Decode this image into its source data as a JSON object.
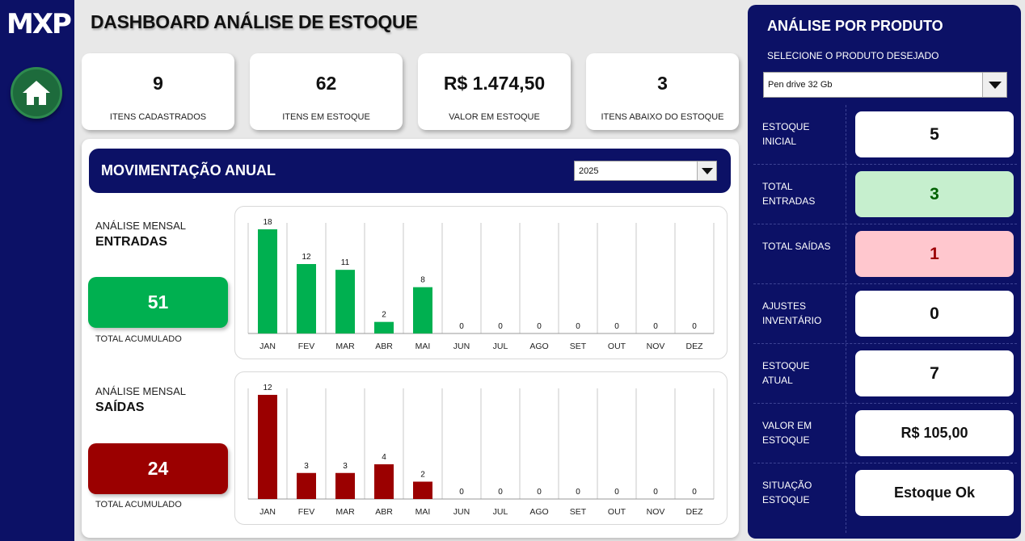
{
  "logo": {
    "text": "MXP"
  },
  "title": "DASHBOARD ANÁLISE DE ESTOQUE",
  "kpis": [
    {
      "value": "9",
      "label": "ITENS CADASTRADOS"
    },
    {
      "value": "62",
      "label": "ITENS EM ESTOQUE"
    },
    {
      "value": "R$ 1.474,50",
      "label": "VALOR EM ESTOQUE"
    },
    {
      "value": "3",
      "label": "ITENS ABAIXO DO ESTOQUE"
    }
  ],
  "movimentacao": {
    "title": "MOVIMENTAÇÃO ANUAL",
    "year": "2025"
  },
  "entradas": {
    "subtitle": "ANÁLISE MENSAL",
    "title": "ENTRADAS",
    "total": "51",
    "total_label": "TOTAL ACUMULADO"
  },
  "saidas": {
    "subtitle": "ANÁLISE MENSAL",
    "title": "SAÍDAS",
    "total": "24",
    "total_label": "TOTAL ACUMULADO"
  },
  "chart_data": [
    {
      "type": "bar",
      "categories": [
        "JAN",
        "FEV",
        "MAR",
        "ABR",
        "MAI",
        "JUN",
        "JUL",
        "AGO",
        "SET",
        "OUT",
        "NOV",
        "DEZ"
      ],
      "values": [
        18,
        12,
        11,
        2,
        8,
        0,
        0,
        0,
        0,
        0,
        0,
        0
      ],
      "color": "#00b050",
      "ylim": [
        0,
        18
      ]
    },
    {
      "type": "bar",
      "categories": [
        "JAN",
        "FEV",
        "MAR",
        "ABR",
        "MAI",
        "JUN",
        "JUL",
        "AGO",
        "SET",
        "OUT",
        "NOV",
        "DEZ"
      ],
      "values": [
        12,
        3,
        3,
        4,
        2,
        0,
        0,
        0,
        0,
        0,
        0,
        0
      ],
      "color": "#9b0000",
      "ylim": [
        0,
        12
      ]
    }
  ],
  "produto": {
    "title": "ANÁLISE POR PRODUTO",
    "select_label": "SELECIONE O PRODUTO DESEJADO",
    "selected": "Pen drive 32 Gb",
    "rows": [
      {
        "label": "ESTOQUE INICIAL",
        "value": "5",
        "bg": "#ffffff",
        "color": "#111111"
      },
      {
        "label": "TOTAL ENTRADAS",
        "value": "3",
        "bg": "#c6efce",
        "color": "#006100"
      },
      {
        "label": "TOTAL SAÍDAS",
        "value": "1",
        "bg": "#ffc7ce",
        "color": "#9c0006"
      },
      {
        "label": "AJUSTES INVENTÁRIO",
        "value": "0",
        "bg": "#ffffff",
        "color": "#111111"
      },
      {
        "label": "ESTOQUE ATUAL",
        "value": "7",
        "bg": "#ffffff",
        "color": "#111111"
      },
      {
        "label": "VALOR EM ESTOQUE",
        "value": "R$ 105,00",
        "bg": "#ffffff",
        "color": "#111111"
      },
      {
        "label": "SITUAÇÃO ESTOQUE",
        "value": "Estoque Ok",
        "bg": "#ffffff",
        "color": "#111111"
      }
    ]
  },
  "colors": {
    "navy": "#0c1166",
    "green": "#00b050",
    "red": "#9b0000"
  }
}
